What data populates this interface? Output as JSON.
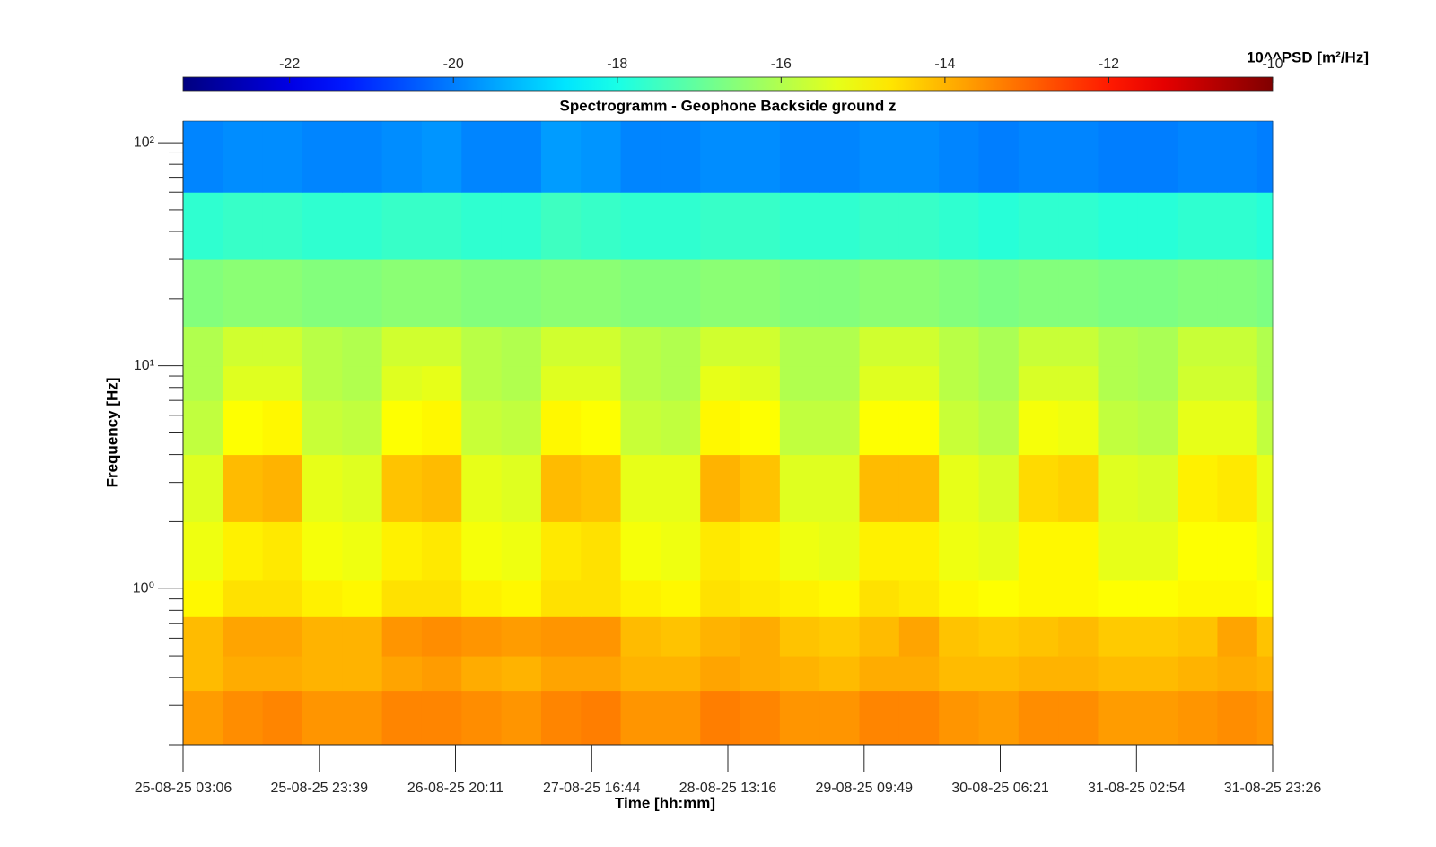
{
  "chart_data": {
    "type": "heatmap",
    "title": "Spectrogramm - Geophone Backside ground z",
    "xlabel": "Time [hh:mm]",
    "ylabel": "Frequency [Hz]",
    "colorbar_label": "10^^PSD [m²/Hz]",
    "colormap": "jet",
    "clim": [
      -23.3,
      -10
    ],
    "cticks": [
      -22,
      -20,
      -18,
      -16,
      -14,
      -12,
      -10
    ],
    "ylog": true,
    "xlim": [
      "2025-08-25T03:06",
      "2025-08-31T23:26"
    ],
    "ylim": [
      0.2,
      125
    ],
    "xticks": [
      {
        "value": "2025-08-25T03:06",
        "label": "25-08-25 03:06"
      },
      {
        "value": "2025-08-25T23:39",
        "label": "25-08-25 23:39"
      },
      {
        "value": "2025-08-26T20:11",
        "label": "26-08-25 20:11"
      },
      {
        "value": "2025-08-27T16:44",
        "label": "27-08-25 16:44"
      },
      {
        "value": "2025-08-28T13:16",
        "label": "28-08-25 13:16"
      },
      {
        "value": "2025-08-29T09:49",
        "label": "29-08-25 09:49"
      },
      {
        "value": "2025-08-30T06:21",
        "label": "30-08-25 06:21"
      },
      {
        "value": "2025-08-31T02:54",
        "label": "31-08-25 02:54"
      },
      {
        "value": "2025-08-31T23:26",
        "label": "31-08-25 23:26"
      }
    ],
    "yticks": [
      {
        "value": 1,
        "label": "10⁰"
      },
      {
        "value": 10,
        "label": "10¹"
      },
      {
        "value": 100,
        "label": "10²"
      }
    ],
    "yminorticks": [
      0.2,
      0.3,
      0.4,
      0.5,
      0.6,
      0.7,
      0.8,
      0.9,
      2,
      3,
      4,
      5,
      6,
      7,
      8,
      9,
      20,
      30,
      40,
      50,
      60,
      70,
      80,
      90
    ],
    "x": [
      "2025-08-25T03:06",
      "2025-08-25T09:06",
      "2025-08-25T15:06",
      "2025-08-25T21:06",
      "2025-08-26T03:06",
      "2025-08-26T09:06",
      "2025-08-26T15:06",
      "2025-08-26T21:06",
      "2025-08-27T03:06",
      "2025-08-27T09:06",
      "2025-08-27T15:06",
      "2025-08-27T21:06",
      "2025-08-28T03:06",
      "2025-08-28T09:06",
      "2025-08-28T15:06",
      "2025-08-28T21:06",
      "2025-08-29T03:06",
      "2025-08-29T09:06",
      "2025-08-29T15:06",
      "2025-08-29T21:06",
      "2025-08-30T03:06",
      "2025-08-30T09:06",
      "2025-08-30T15:06",
      "2025-08-30T21:06",
      "2025-08-31T03:06",
      "2025-08-31T09:06",
      "2025-08-31T15:06",
      "2025-08-31T21:06"
    ],
    "y": [
      0.2,
      0.35,
      0.5,
      0.75,
      1.1,
      2,
      4,
      7,
      10,
      15,
      30,
      60
    ],
    "z": [
      [
        -13.7,
        -13.5,
        -13.4,
        -13.6,
        -13.6,
        -13.4,
        -13.4,
        -13.5,
        -13.6,
        -13.4,
        -13.3,
        -13.6,
        -13.6,
        -13.3,
        -13.4,
        -13.6,
        -13.6,
        -13.4,
        -13.4,
        -13.6,
        -13.7,
        -13.5,
        -13.5,
        -13.7,
        -13.7,
        -13.6,
        -13.5,
        -13.6
      ],
      [
        -14.1,
        -13.9,
        -13.9,
        -14.0,
        -14.0,
        -13.8,
        -13.7,
        -13.9,
        -14.0,
        -13.8,
        -13.8,
        -14.0,
        -14.0,
        -13.8,
        -13.9,
        -14.0,
        -14.1,
        -13.9,
        -13.9,
        -14.1,
        -14.1,
        -14.0,
        -14.0,
        -14.1,
        -14.1,
        -14.0,
        -13.9,
        -14.0
      ],
      [
        -14.1,
        -13.8,
        -13.8,
        -14.0,
        -14.0,
        -13.6,
        -13.5,
        -13.6,
        -13.7,
        -13.6,
        -13.6,
        -14.1,
        -14.2,
        -14.0,
        -13.9,
        -14.2,
        -14.3,
        -14.1,
        -13.8,
        -14.2,
        -14.3,
        -14.2,
        -14.1,
        -14.3,
        -14.3,
        -14.2,
        -13.8,
        -14.2
      ],
      [
        -14.9,
        -14.6,
        -14.6,
        -14.8,
        -14.9,
        -14.6,
        -14.6,
        -14.8,
        -14.9,
        -14.6,
        -14.6,
        -14.8,
        -14.9,
        -14.6,
        -14.7,
        -14.8,
        -14.9,
        -14.6,
        -14.7,
        -14.9,
        -15.0,
        -14.9,
        -14.9,
        -15.0,
        -15.0,
        -14.9,
        -14.9,
        -15.0
      ],
      [
        -15.2,
        -14.8,
        -14.7,
        -15.1,
        -15.2,
        -14.8,
        -14.7,
        -15.1,
        -15.2,
        -14.7,
        -14.6,
        -15.1,
        -15.2,
        -14.7,
        -14.8,
        -15.2,
        -15.3,
        -14.8,
        -14.8,
        -15.2,
        -15.3,
        -14.9,
        -14.9,
        -15.3,
        -15.3,
        -15.0,
        -15.0,
        -15.2
      ],
      [
        -15.4,
        -14.1,
        -14.0,
        -15.3,
        -15.4,
        -14.2,
        -14.1,
        -15.3,
        -15.4,
        -14.1,
        -14.2,
        -15.3,
        -15.3,
        -14.0,
        -14.2,
        -15.4,
        -15.4,
        -14.1,
        -14.1,
        -15.3,
        -15.5,
        -14.5,
        -14.4,
        -15.4,
        -15.5,
        -14.8,
        -14.7,
        -15.3
      ],
      [
        -15.8,
        -15.0,
        -14.9,
        -15.7,
        -15.8,
        -15.0,
        -14.9,
        -15.7,
        -15.8,
        -14.9,
        -15.0,
        -15.7,
        -15.8,
        -14.9,
        -15.0,
        -15.8,
        -15.8,
        -15.0,
        -15.0,
        -15.7,
        -15.9,
        -15.1,
        -15.2,
        -15.8,
        -15.9,
        -15.3,
        -15.3,
        -15.8
      ],
      [
        -16.0,
        -15.4,
        -15.4,
        -15.9,
        -16.0,
        -15.4,
        -15.3,
        -15.9,
        -16.0,
        -15.4,
        -15.4,
        -15.9,
        -16.0,
        -15.3,
        -15.4,
        -16.0,
        -16.0,
        -15.4,
        -15.4,
        -15.9,
        -16.1,
        -15.5,
        -15.5,
        -16.0,
        -16.1,
        -15.6,
        -15.6,
        -16.0
      ],
      [
        -16.0,
        -15.6,
        -15.6,
        -15.9,
        -16.0,
        -15.6,
        -15.6,
        -15.9,
        -16.0,
        -15.6,
        -15.6,
        -15.9,
        -16.0,
        -15.6,
        -15.6,
        -16.0,
        -16.0,
        -15.6,
        -15.6,
        -15.9,
        -16.1,
        -15.7,
        -15.7,
        -16.0,
        -16.1,
        -15.7,
        -15.7,
        -16.0
      ],
      [
        -16.6,
        -16.5,
        -16.5,
        -16.6,
        -16.6,
        -16.5,
        -16.5,
        -16.6,
        -16.6,
        -16.5,
        -16.5,
        -16.6,
        -16.6,
        -16.5,
        -16.5,
        -16.6,
        -16.6,
        -16.5,
        -16.5,
        -16.6,
        -16.7,
        -16.6,
        -16.6,
        -16.7,
        -16.7,
        -16.6,
        -16.6,
        -16.7
      ],
      [
        -17.7,
        -17.6,
        -17.6,
        -17.7,
        -17.7,
        -17.6,
        -17.6,
        -17.7,
        -17.7,
        -17.5,
        -17.6,
        -17.7,
        -17.7,
        -17.6,
        -17.6,
        -17.7,
        -17.7,
        -17.6,
        -17.6,
        -17.7,
        -17.8,
        -17.7,
        -17.7,
        -17.8,
        -17.8,
        -17.7,
        -17.7,
        -17.8
      ],
      [
        -19.9,
        -19.8,
        -19.8,
        -19.9,
        -19.9,
        -19.8,
        -19.7,
        -19.9,
        -19.9,
        -19.6,
        -19.7,
        -19.9,
        -19.9,
        -19.8,
        -19.8,
        -19.9,
        -19.9,
        -19.8,
        -19.8,
        -19.9,
        -20.0,
        -19.9,
        -19.9,
        -20.0,
        -20.0,
        -19.9,
        -19.9,
        -20.0
      ]
    ]
  }
}
